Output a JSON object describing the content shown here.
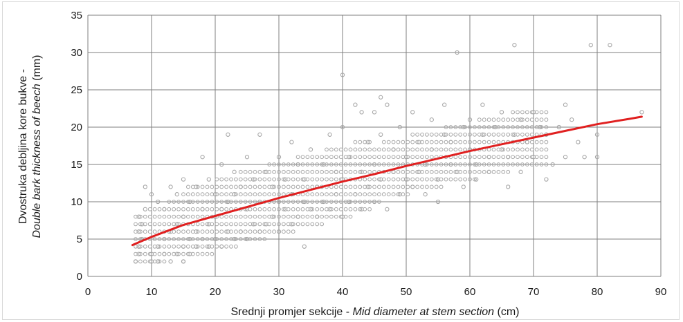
{
  "chart_data": {
    "type": "scatter",
    "xlabel_parts": [
      "Srednji promjer sekcije - ",
      "Mid diameter at stem section",
      " (cm)"
    ],
    "ylabel_parts": [
      "Dvostruka debljina kore bukve -",
      "Double bark  thickness of beech",
      " (mm)"
    ],
    "xlim": [
      0,
      90
    ],
    "ylim": [
      0,
      35
    ],
    "xticks": [
      "0",
      "10",
      "20",
      "30",
      "40",
      "50",
      "60",
      "70",
      "80",
      "90"
    ],
    "yticks": [
      "0",
      "5",
      "10",
      "15",
      "20",
      "25",
      "30",
      "35"
    ],
    "grid": true,
    "series": [
      {
        "marker": "open-circle",
        "color": "#a6a6a6",
        "points": [
          [
            7.5,
            2
          ],
          [
            8,
            3
          ],
          [
            8,
            4
          ],
          [
            8.5,
            5
          ],
          [
            8,
            6
          ],
          [
            8.5,
            7
          ],
          [
            8,
            8
          ],
          [
            9,
            9
          ],
          [
            9,
            12
          ],
          [
            10,
            2
          ],
          [
            10,
            3
          ],
          [
            10,
            11
          ],
          [
            11,
            2
          ],
          [
            11,
            4
          ],
          [
            11,
            10
          ],
          [
            12,
            3
          ],
          [
            12,
            5
          ],
          [
            12,
            9
          ],
          [
            13,
            2
          ],
          [
            13,
            6
          ],
          [
            13,
            12
          ],
          [
            14,
            3
          ],
          [
            14,
            7
          ],
          [
            14,
            11
          ],
          [
            15,
            2
          ],
          [
            15,
            4
          ],
          [
            15,
            8
          ],
          [
            15,
            13
          ],
          [
            16,
            3
          ],
          [
            16,
            5
          ],
          [
            16,
            10
          ],
          [
            17,
            4
          ],
          [
            17,
            6
          ],
          [
            17,
            12
          ],
          [
            18,
            5
          ],
          [
            18,
            9
          ],
          [
            18,
            16
          ],
          [
            19,
            4
          ],
          [
            19,
            7
          ],
          [
            19,
            13
          ],
          [
            20,
            5
          ],
          [
            20,
            8
          ],
          [
            20,
            11
          ],
          [
            21,
            4
          ],
          [
            21,
            9
          ],
          [
            21,
            15
          ],
          [
            22,
            6
          ],
          [
            22,
            10
          ],
          [
            22,
            19
          ],
          [
            23,
            5
          ],
          [
            23,
            11
          ],
          [
            23,
            14
          ],
          [
            24,
            6
          ],
          [
            24,
            12
          ],
          [
            25,
            5
          ],
          [
            25,
            9
          ],
          [
            25,
            16
          ],
          [
            26,
            7
          ],
          [
            26,
            13
          ],
          [
            27,
            6
          ],
          [
            27,
            10
          ],
          [
            27,
            19
          ],
          [
            28,
            7
          ],
          [
            28,
            14
          ],
          [
            29,
            8
          ],
          [
            29,
            12
          ],
          [
            30,
            6
          ],
          [
            30,
            10
          ],
          [
            30,
            16
          ],
          [
            31,
            9
          ],
          [
            31,
            13
          ],
          [
            32,
            7
          ],
          [
            32,
            11
          ],
          [
            32,
            18
          ],
          [
            33,
            8
          ],
          [
            33,
            15
          ],
          [
            34,
            4
          ],
          [
            34,
            10
          ],
          [
            34,
            13
          ],
          [
            35,
            9
          ],
          [
            35,
            17
          ],
          [
            36,
            8
          ],
          [
            36,
            12
          ],
          [
            37,
            10
          ],
          [
            37,
            15
          ],
          [
            38,
            9
          ],
          [
            38,
            19
          ],
          [
            39,
            11
          ],
          [
            39,
            14
          ],
          [
            40,
            8
          ],
          [
            40,
            13
          ],
          [
            40,
            20
          ],
          [
            40,
            27
          ],
          [
            41,
            10
          ],
          [
            41,
            16
          ],
          [
            42,
            11
          ],
          [
            42,
            23
          ],
          [
            43,
            9
          ],
          [
            43,
            14
          ],
          [
            43,
            22
          ],
          [
            44,
            12
          ],
          [
            44,
            18
          ],
          [
            45,
            10
          ],
          [
            45,
            15
          ],
          [
            45,
            22
          ],
          [
            46,
            13
          ],
          [
            46,
            19
          ],
          [
            46,
            24
          ],
          [
            47,
            9
          ],
          [
            47,
            23
          ],
          [
            48,
            14
          ],
          [
            48,
            17
          ],
          [
            49,
            11
          ],
          [
            49,
            20
          ],
          [
            50,
            13
          ],
          [
            50,
            16
          ],
          [
            51,
            12
          ],
          [
            51,
            22
          ],
          [
            52,
            14
          ],
          [
            52,
            18
          ],
          [
            53,
            11
          ],
          [
            53,
            15
          ],
          [
            54,
            17
          ],
          [
            54,
            21
          ],
          [
            55,
            10
          ],
          [
            55,
            13
          ],
          [
            56,
            19
          ],
          [
            56,
            23
          ],
          [
            57,
            15
          ],
          [
            57,
            18
          ],
          [
            58,
            30
          ],
          [
            58,
            14
          ],
          [
            59,
            20
          ],
          [
            59,
            12
          ],
          [
            60,
            17
          ],
          [
            60,
            21
          ],
          [
            61,
            15
          ],
          [
            61,
            13
          ],
          [
            62,
            19
          ],
          [
            62,
            23
          ],
          [
            63,
            16
          ],
          [
            63,
            14
          ],
          [
            64,
            20
          ],
          [
            65,
            17
          ],
          [
            65,
            22
          ],
          [
            66,
            16
          ],
          [
            66,
            12
          ],
          [
            67,
            31
          ],
          [
            67,
            19
          ],
          [
            68,
            21
          ],
          [
            68,
            14
          ],
          [
            69,
            18
          ],
          [
            70,
            16
          ],
          [
            70,
            22
          ],
          [
            71,
            20
          ],
          [
            72,
            13
          ],
          [
            72,
            19
          ],
          [
            73,
            15
          ],
          [
            74,
            20
          ],
          [
            75,
            23
          ],
          [
            75,
            16
          ],
          [
            76,
            21
          ],
          [
            77,
            18
          ],
          [
            78,
            16
          ],
          [
            79,
            31
          ],
          [
            80,
            19
          ],
          [
            80,
            16
          ],
          [
            82,
            31
          ],
          [
            87,
            22
          ]
        ]
      }
    ],
    "trend": {
      "color": "#e02020",
      "points": [
        [
          7,
          4.2
        ],
        [
          10,
          5.3
        ],
        [
          15,
          6.9
        ],
        [
          20,
          8.1
        ],
        [
          25,
          9.3
        ],
        [
          30,
          10.5
        ],
        [
          35,
          11.6
        ],
        [
          40,
          12.7
        ],
        [
          45,
          13.7
        ],
        [
          50,
          14.8
        ],
        [
          55,
          15.8
        ],
        [
          60,
          16.8
        ],
        [
          65,
          17.7
        ],
        [
          70,
          18.6
        ],
        [
          75,
          19.5
        ],
        [
          80,
          20.4
        ],
        [
          85,
          21.1
        ],
        [
          87,
          21.4
        ]
      ]
    }
  }
}
